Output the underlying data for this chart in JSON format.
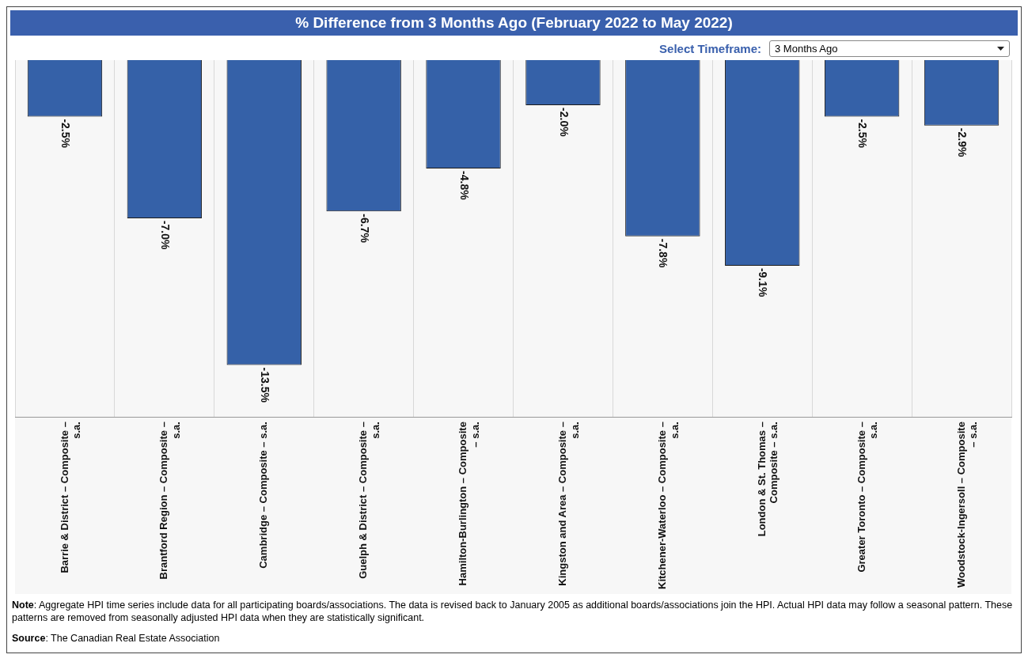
{
  "chart_data": {
    "type": "bar",
    "title": "% Difference from 3 Months Ago (February 2022 to May 2022)",
    "categories": [
      "Barrie & District – Composite – s.a.",
      "Brantford Region – Composite – s.a.",
      "Cambridge – Composite – s.a.",
      "Guelph & District – Composite – s.a.",
      "Hamilton-Burlington – Composite – s.a.",
      "Kingston and Area – Composite – s.a.",
      "Kitchener-Waterloo – Composite – s.a.",
      "London & St. Thomas – Composite – s.a.",
      "Greater Toronto – Composite – s.a.",
      "Woodstock-Ingersoll – Composite – s.a."
    ],
    "values": [
      -2.5,
      -7.0,
      -13.5,
      -6.7,
      -4.8,
      -2.0,
      -7.8,
      -9.1,
      -2.5,
      -2.9
    ],
    "value_labels": [
      "-2.5%",
      "-7.0%",
      "-13.5%",
      "-6.7%",
      "-4.8%",
      "-2.0%",
      "-7.8%",
      "-9.1%",
      "-2.5%",
      "-2.9%"
    ],
    "color": "#3561a8",
    "grid": "x",
    "legend": false,
    "tick_labels": "x",
    "annotations": [
      "Select Timeframe:",
      "3 Months Ago",
      "Note: Aggregate HPI time series include data for all participating boards/associations. The data is revised back to January 2005 as additional boards/associations join the HPI. Actual HPI data may follow a seasonal pattern. These patterns are removed from seasonally adjusted HPI data when they are statistically significant.",
      "Source: The Canadian Real Estate Association"
    ]
  }
}
